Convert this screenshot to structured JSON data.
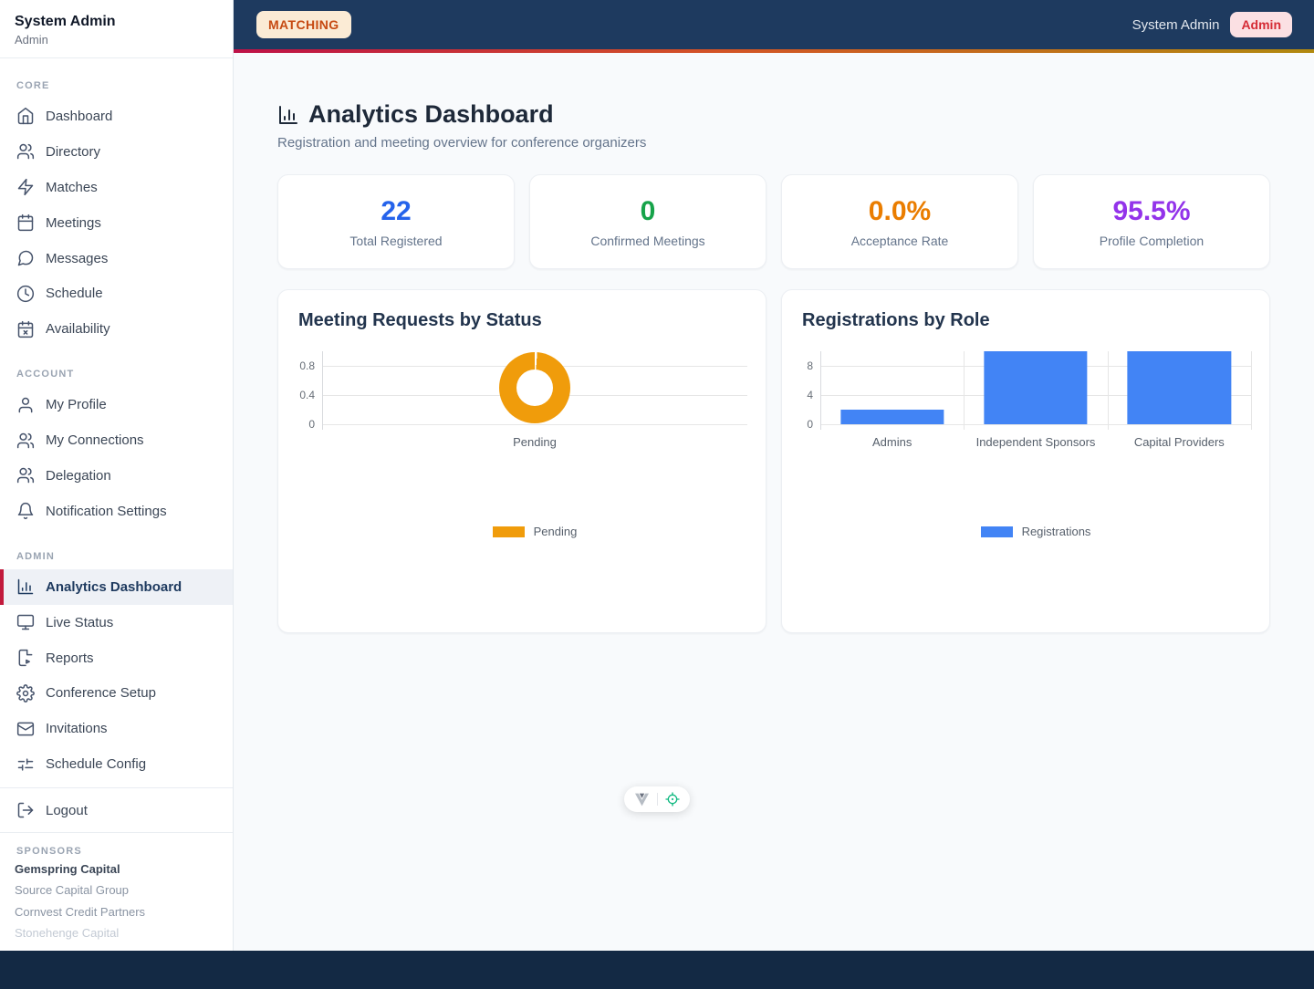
{
  "topbar": {
    "mode_badge": "MATCHING",
    "user_name": "System Admin",
    "role_badge": "Admin"
  },
  "sidebar": {
    "user_name": "System Admin",
    "user_role": "Admin",
    "sections": [
      {
        "label": "CORE",
        "items": [
          {
            "label": "Dashboard",
            "icon": "home-icon"
          },
          {
            "label": "Directory",
            "icon": "users-icon"
          },
          {
            "label": "Matches",
            "icon": "zap-icon"
          },
          {
            "label": "Meetings",
            "icon": "calendar-icon"
          },
          {
            "label": "Messages",
            "icon": "chat-icon"
          },
          {
            "label": "Schedule",
            "icon": "clock-icon"
          },
          {
            "label": "Availability",
            "icon": "calendar-x-icon"
          }
        ]
      },
      {
        "label": "ACCOUNT",
        "items": [
          {
            "label": "My Profile",
            "icon": "user-icon"
          },
          {
            "label": "My Connections",
            "icon": "users-icon"
          },
          {
            "label": "Delegation",
            "icon": "users-icon"
          },
          {
            "label": "Notification Settings",
            "icon": "bell-icon"
          }
        ]
      },
      {
        "label": "ADMIN",
        "items": [
          {
            "label": "Analytics Dashboard",
            "icon": "bar-chart-icon",
            "active": true
          },
          {
            "label": "Live Status",
            "icon": "monitor-icon"
          },
          {
            "label": "Reports",
            "icon": "file-export-icon"
          },
          {
            "label": "Conference Setup",
            "icon": "gear-icon"
          },
          {
            "label": "Invitations",
            "icon": "mail-icon"
          },
          {
            "label": "Schedule Config",
            "icon": "sliders-icon"
          }
        ]
      }
    ],
    "logout_label": "Logout",
    "sponsors_label": "SPONSORS",
    "sponsors": [
      {
        "name": "Gemspring Capital",
        "emphasis": "high"
      },
      {
        "name": "Source Capital Group",
        "emphasis": "normal"
      },
      {
        "name": "Cornvest Credit Partners",
        "emphasis": "normal"
      },
      {
        "name": "Stonehenge Capital",
        "emphasis": "faded"
      }
    ]
  },
  "page": {
    "title": "Analytics Dashboard",
    "subtitle": "Registration and meeting overview for conference organizers"
  },
  "stats": [
    {
      "value": "22",
      "label": "Total Registered",
      "color": "#2563EB"
    },
    {
      "value": "0",
      "label": "Confirmed Meetings",
      "color": "#16A34A"
    },
    {
      "value": "0.0%",
      "label": "Acceptance Rate",
      "color": "#EA7D00"
    },
    {
      "value": "95.5%",
      "label": "Profile Completion",
      "color": "#9333EA"
    }
  ],
  "chart_data": [
    {
      "type": "doughnut",
      "title": "Meeting Requests by Status",
      "categories": [
        "Pending"
      ],
      "values": [
        1
      ],
      "color": "#F09C0B",
      "y_ticks": [
        "0.8",
        "0.4",
        "0"
      ],
      "ylim": [
        0,
        1
      ],
      "legend": "Pending",
      "legend_position": "bottom",
      "grid": true
    },
    {
      "type": "bar",
      "title": "Registrations by Role",
      "categories": [
        "Admins",
        "Independent Sponsors",
        "Capital Providers"
      ],
      "series": [
        {
          "name": "Registrations",
          "values": [
            2,
            10,
            10
          ]
        }
      ],
      "color": "#4284F5",
      "y_ticks": [
        "8",
        "4",
        "0"
      ],
      "ylim": [
        0,
        10
      ],
      "legend": "Registrations",
      "legend_position": "bottom",
      "grid": true
    }
  ],
  "devtools": {
    "logo_icon": "devtools-v-icon",
    "locate_icon": "target-icon",
    "accent_green": "#10B981"
  },
  "colors": {
    "navbar_bg": "#1E3A5F",
    "footer_bg": "#132944",
    "accent_red": "#C21A3C",
    "gradient_left": "#BE1147",
    "gradient_mid": "#D35426",
    "gradient_right": "#B1890F",
    "page_bg": "#F8FAFC",
    "bar_blue": "#4284F5"
  }
}
